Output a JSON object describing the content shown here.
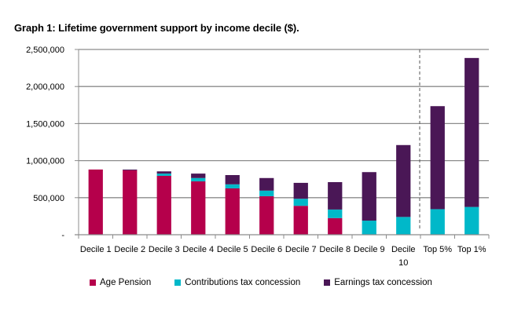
{
  "chart_data": {
    "type": "bar",
    "stacked": true,
    "title": "Graph 1: Lifetime government support by income decile ($).",
    "xlabel": "",
    "ylabel": "",
    "ylim": [
      0,
      2500000
    ],
    "yticks": [
      0,
      500000,
      1000000,
      1500000,
      2000000,
      2500000
    ],
    "ytick_labels": [
      "-",
      "500,000",
      "1,000,000",
      "1,500,000",
      "2,000,000",
      "2,500,000"
    ],
    "grid": true,
    "categories": [
      "Decile 1",
      "Decile 2",
      "Decile 3",
      "Decile 4",
      "Decile 5",
      "Decile 6",
      "Decile 7",
      "Decile 8",
      "Decile 9",
      "Decile 10",
      "Top 5%",
      "Top 1%"
    ],
    "category_label_lines": [
      [
        "Decile 1"
      ],
      [
        "Decile 2"
      ],
      [
        "Decile 3"
      ],
      [
        "Decile 4"
      ],
      [
        "Decile 5"
      ],
      [
        "Decile 6"
      ],
      [
        "Decile 7"
      ],
      [
        "Decile 8"
      ],
      [
        "Decile 9"
      ],
      [
        "Decile",
        "10"
      ],
      [
        "Top 5%"
      ],
      [
        "Top 1%"
      ]
    ],
    "series": [
      {
        "name": "Age Pension",
        "color": "#B5004B",
        "values": [
          880000,
          870000,
          795000,
          720000,
          625000,
          520000,
          390000,
          225000,
          0,
          0,
          0,
          0
        ]
      },
      {
        "name": "Contributions tax concession",
        "color": "#00B8C9",
        "values": [
          0,
          0,
          30000,
          45000,
          55000,
          75000,
          95000,
          115000,
          190000,
          240000,
          345000,
          375000
        ]
      },
      {
        "name": "Earnings tax concession",
        "color": "#4A1756",
        "values": [
          0,
          10000,
          30000,
          60000,
          125000,
          170000,
          215000,
          370000,
          655000,
          970000,
          1390000,
          2010000
        ]
      }
    ],
    "annotations": [
      {
        "type": "vertical-dashed-line",
        "between": [
          "Decile 10",
          "Top 5%"
        ]
      }
    ],
    "legend_position": "bottom-left"
  }
}
